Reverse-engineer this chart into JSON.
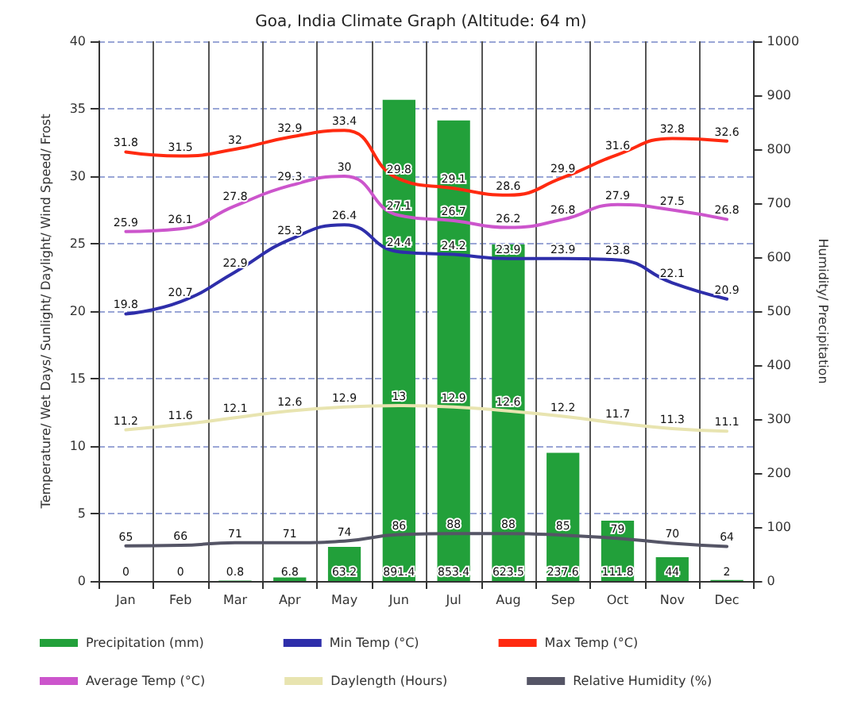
{
  "chart_data": {
    "type": "bar",
    "title": "Goa, India Climate Graph (Altitude: 64 m)",
    "ylabel": "Temperature/ Wet Days/ Sunlight/ Daylight/ Wind Speed/ Frost",
    "y2label": "Humidity/ Precipitation",
    "categories": [
      "Jan",
      "Feb",
      "Mar",
      "Apr",
      "May",
      "Jun",
      "Jul",
      "Aug",
      "Sep",
      "Oct",
      "Nov",
      "Dec"
    ],
    "series": [
      {
        "name": "Precipitation (mm)",
        "axis": "y2",
        "color": "#22a03a",
        "values": [
          0.0,
          0.0,
          0.8,
          6.8,
          63.2,
          891.4,
          853.4,
          623.5,
          237.6,
          111.8,
          44.0,
          2.0
        ]
      },
      {
        "name": "Min Temp (°C)",
        "type": "line",
        "color": "#2e2eaa",
        "values": [
          19.8,
          20.7,
          22.9,
          25.3,
          26.4,
          24.4,
          24.2,
          23.9,
          23.9,
          23.8,
          22.1,
          20.9
        ]
      },
      {
        "name": "Max Temp (°C)",
        "type": "line",
        "color": "#ff2a10",
        "values": [
          31.8,
          31.5,
          32.0,
          32.9,
          33.4,
          29.8,
          29.1,
          28.6,
          29.9,
          31.6,
          32.8,
          32.6
        ]
      },
      {
        "name": "Average Temp (°C)",
        "type": "line",
        "color": "#cc55cc",
        "values": [
          25.9,
          26.1,
          27.8,
          29.3,
          30.0,
          27.1,
          26.7,
          26.2,
          26.8,
          27.9,
          27.5,
          26.8
        ]
      },
      {
        "name": "Daylength (Hours)",
        "type": "line",
        "color": "#e8e4b0",
        "values": [
          11.2,
          11.6,
          12.1,
          12.6,
          12.9,
          13.0,
          12.9,
          12.6,
          12.2,
          11.7,
          11.3,
          11.1
        ]
      },
      {
        "name": "Relative Humidity (%)",
        "type": "line",
        "axis": "y2",
        "color": "#555566",
        "values": [
          65,
          66,
          71,
          71,
          74,
          86,
          88,
          88,
          85,
          79,
          70,
          64
        ]
      }
    ],
    "ylim": [
      0,
      40
    ],
    "yticks": [
      0,
      5,
      10,
      15,
      20,
      25,
      30,
      35,
      40
    ],
    "y2lim": [
      0,
      1000
    ],
    "y2ticks": [
      0,
      100,
      200,
      300,
      400,
      500,
      600,
      700,
      800,
      900,
      1000
    ],
    "grid": true,
    "legend": "bottom",
    "data_labels": true,
    "marker": "none"
  }
}
